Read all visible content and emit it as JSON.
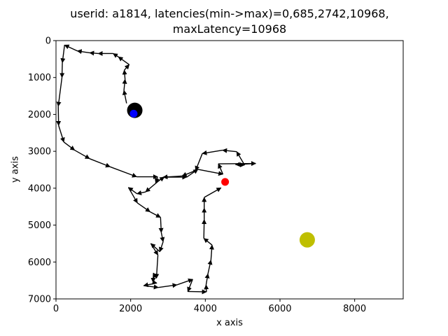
{
  "chart_data": {
    "type": "line",
    "title_line1": "userid: a1814, latencies(min->max)=0,685,2742,10968,",
    "title_line2": "maxLatency=10968",
    "xlabel": "x axis",
    "ylabel": "y axis",
    "xlim": [
      0,
      9300
    ],
    "ylim": [
      7000,
      0
    ],
    "y_inverted": true,
    "grid": false,
    "xticks": [
      0,
      2000,
      4000,
      6000,
      8000
    ],
    "yticks": [
      0,
      1000,
      2000,
      3000,
      4000,
      5000,
      6000,
      7000
    ],
    "path_color": "#000000",
    "path": [
      [
        1890,
        1700
      ],
      [
        1820,
        1350
      ],
      [
        1850,
        1050
      ],
      [
        1830,
        800
      ],
      [
        1960,
        650
      ],
      [
        1670,
        440
      ],
      [
        1530,
        350
      ],
      [
        1130,
        350
      ],
      [
        900,
        330
      ],
      [
        570,
        280
      ],
      [
        230,
        120
      ],
      [
        170,
        600
      ],
      [
        160,
        1000
      ],
      [
        60,
        1780
      ],
      [
        70,
        2300
      ],
      [
        210,
        2750
      ],
      [
        500,
        2970
      ],
      [
        900,
        3200
      ],
      [
        1450,
        3420
      ],
      [
        2160,
        3690
      ],
      [
        2720,
        3690
      ],
      [
        2670,
        3850
      ],
      [
        2900,
        3700
      ],
      [
        3500,
        3700
      ],
      [
        3800,
        3490
      ],
      [
        4470,
        3620
      ],
      [
        4350,
        3340
      ],
      [
        5350,
        3330
      ],
      [
        4810,
        3360
      ],
      [
        5050,
        3370
      ],
      [
        4840,
        3010
      ],
      [
        4460,
        2970
      ],
      [
        3920,
        3060
      ],
      [
        3740,
        3520
      ],
      [
        3380,
        3670
      ],
      [
        2870,
        3700
      ],
      [
        2400,
        4100
      ],
      [
        2170,
        4150
      ],
      [
        1940,
        3980
      ],
      [
        2180,
        4400
      ],
      [
        2520,
        4640
      ],
      [
        2800,
        4790
      ],
      [
        2820,
        5200
      ],
      [
        2870,
        5450
      ],
      [
        2780,
        5720
      ],
      [
        2540,
        5500
      ],
      [
        2730,
        5810
      ],
      [
        2690,
        6440
      ],
      [
        2610,
        6300
      ],
      [
        2600,
        6550
      ],
      [
        2700,
        6570
      ],
      [
        2350,
        6640
      ],
      [
        2740,
        6690
      ],
      [
        3240,
        6620
      ],
      [
        3660,
        6470
      ],
      [
        3530,
        6800
      ],
      [
        4030,
        6810
      ],
      [
        4020,
        6620
      ],
      [
        4070,
        6320
      ],
      [
        4150,
        5950
      ],
      [
        4180,
        5540
      ],
      [
        3960,
        5360
      ],
      [
        3970,
        4850
      ],
      [
        3970,
        4540
      ],
      [
        3970,
        4250
      ],
      [
        4420,
        3990
      ]
    ],
    "markers": [
      {
        "name": "large-black-marker",
        "x": 2110,
        "y": 1890,
        "color": "#000000",
        "size": "large"
      },
      {
        "name": "blue-marker",
        "x": 2080,
        "y": 1980,
        "color": "#0000ff",
        "size": "small"
      },
      {
        "name": "red-marker",
        "x": 4530,
        "y": 3830,
        "color": "#ff0000",
        "size": "small"
      },
      {
        "name": "yellow-marker",
        "x": 6730,
        "y": 5400,
        "color": "#bfbf00",
        "size": "large"
      }
    ]
  }
}
